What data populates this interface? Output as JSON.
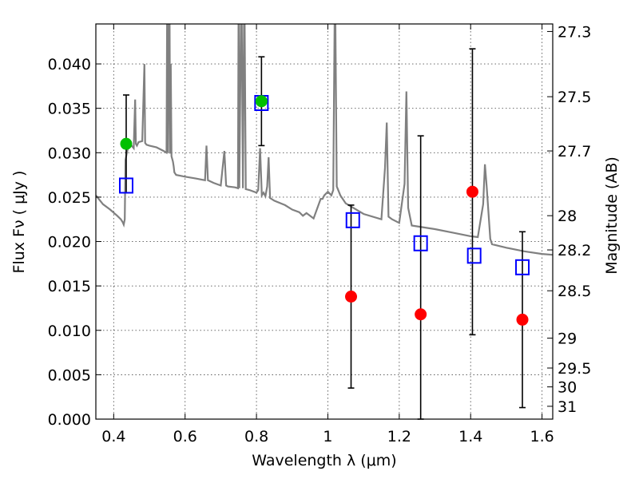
{
  "chart_data": {
    "type": "scatter",
    "title": "",
    "xlabel": "Wavelength  λ (μm)",
    "ylabel": "Flux  Fν  ( μJy )",
    "ylabel_right": "Magnitude (AB)",
    "xlim": [
      0.35,
      1.63
    ],
    "ylim": [
      0.0,
      0.0445
    ],
    "x_ticks": [
      0.4,
      0.6,
      0.8,
      1.0,
      1.2,
      1.4,
      1.6
    ],
    "x_tick_labels": [
      "0.4",
      "0.6",
      "0.8",
      "1",
      "1.2",
      "1.4",
      "1.6"
    ],
    "y_ticks": [
      0.0,
      0.005,
      0.01,
      0.015,
      0.02,
      0.025,
      0.03,
      0.035,
      0.04
    ],
    "y_tick_labels": [
      "0.000",
      "0.005",
      "0.010",
      "0.015",
      "0.020",
      "0.025",
      "0.030",
      "0.035",
      "0.040"
    ],
    "right_ticks": [
      {
        "label": "27.3",
        "value": 27.3
      },
      {
        "label": "27.5",
        "value": 27.5
      },
      {
        "label": "27.7",
        "value": 27.7
      },
      {
        "label": "28",
        "value": 28.0
      },
      {
        "label": "28.2",
        "value": 28.2
      },
      {
        "label": "28.5",
        "value": 28.5
      },
      {
        "label": "29",
        "value": 29.0
      },
      {
        "label": "29.5",
        "value": 29.5
      },
      {
        "label": "30",
        "value": 30.0
      },
      {
        "label": "31",
        "value": 31.0
      }
    ],
    "grid": true,
    "colors": {
      "template": "#808080",
      "model": "#0000ff",
      "detection": "#00c000",
      "upper": "#ff0000",
      "errorbar": "#000000"
    },
    "series": [
      {
        "marker": "square-open",
        "points": [
          {
            "x": 0.435,
            "y": 0.0263
          },
          {
            "x": 0.814,
            "y": 0.0356
          },
          {
            "x": 1.07,
            "y": 0.0224
          },
          {
            "x": 1.26,
            "y": 0.0198
          },
          {
            "x": 1.41,
            "y": 0.0184
          },
          {
            "x": 1.545,
            "y": 0.0171
          }
        ]
      },
      {
        "marker": "circle-green",
        "points": [
          {
            "x": 0.435,
            "y": 0.031,
            "err_low": 0.0055,
            "err_high": 0.0055
          },
          {
            "x": 0.814,
            "y": 0.0358,
            "err_low": 0.005,
            "err_high": 0.005
          }
        ]
      },
      {
        "marker": "circle-red",
        "points": [
          {
            "x": 1.065,
            "y": 0.0138,
            "err_low": 0.0103,
            "err_high": 0.0103
          },
          {
            "x": 1.26,
            "y": 0.0118,
            "err_low": 0.0118,
            "err_high": 0.0201
          },
          {
            "x": 1.405,
            "y": 0.0256,
            "err_low": 0.0161,
            "err_high": 0.0161
          },
          {
            "x": 1.545,
            "y": 0.0112,
            "err_low": 0.0099,
            "err_high": 0.0099
          }
        ]
      }
    ],
    "template_spectrum": {
      "x": [
        0.35,
        0.37,
        0.39,
        0.41,
        0.42,
        0.425,
        0.428,
        0.431,
        0.433,
        0.436,
        0.44,
        0.45,
        0.456,
        0.46,
        0.462,
        0.465,
        0.47,
        0.48,
        0.486,
        0.488,
        0.492,
        0.5,
        0.52,
        0.54,
        0.548,
        0.55,
        0.552,
        0.556,
        0.558,
        0.56,
        0.562,
        0.566,
        0.568,
        0.57,
        0.575,
        0.6,
        0.63,
        0.656,
        0.66,
        0.664,
        0.68,
        0.7,
        0.71,
        0.715,
        0.72,
        0.74,
        0.748,
        0.75,
        0.752,
        0.758,
        0.762,
        0.766,
        0.77,
        0.78,
        0.8,
        0.805,
        0.81,
        0.815,
        0.82,
        0.825,
        0.83,
        0.834,
        0.838,
        0.85,
        0.88,
        0.9,
        0.92,
        0.93,
        0.94,
        0.96,
        0.98,
        0.985,
        0.99,
        1.0,
        1.01,
        1.015,
        1.02,
        1.025,
        1.035,
        1.05,
        1.1,
        1.15,
        1.16,
        1.165,
        1.17,
        1.18,
        1.2,
        1.215,
        1.22,
        1.225,
        1.235,
        1.3,
        1.35,
        1.4,
        1.42,
        1.435,
        1.44,
        1.445,
        1.455,
        1.46,
        1.5,
        1.55,
        1.6,
        1.63
      ],
      "y": [
        0.0252,
        0.0242,
        0.0236,
        0.0229,
        0.0225,
        0.0222,
        0.0219,
        0.0225,
        0.0292,
        0.0298,
        0.0305,
        0.0308,
        0.0305,
        0.036,
        0.031,
        0.0308,
        0.0312,
        0.0313,
        0.04,
        0.0311,
        0.0309,
        0.0308,
        0.0306,
        0.0302,
        0.03,
        0.05,
        0.03,
        0.05,
        0.0299,
        0.04,
        0.0296,
        0.029,
        0.0285,
        0.0278,
        0.0275,
        0.0273,
        0.0271,
        0.0269,
        0.0308,
        0.0269,
        0.0266,
        0.0263,
        0.0302,
        0.0263,
        0.0262,
        0.0261,
        0.026,
        0.05,
        0.026,
        0.05,
        0.026,
        0.05,
        0.0259,
        0.0258,
        0.0255,
        0.0258,
        0.0305,
        0.0252,
        0.0255,
        0.0251,
        0.0262,
        0.0295,
        0.0249,
        0.0246,
        0.0241,
        0.0236,
        0.0233,
        0.0229,
        0.0232,
        0.0226,
        0.0248,
        0.0248,
        0.0252,
        0.0256,
        0.0252,
        0.0258,
        0.05,
        0.0262,
        0.0252,
        0.0243,
        0.0231,
        0.0225,
        0.0283,
        0.0334,
        0.0228,
        0.0225,
        0.0221,
        0.0265,
        0.0369,
        0.0238,
        0.0218,
        0.0214,
        0.021,
        0.0206,
        0.0205,
        0.0242,
        0.0287,
        0.0262,
        0.0203,
        0.0197,
        0.0193,
        0.0189,
        0.0186,
        0.0185
      ]
    }
  }
}
